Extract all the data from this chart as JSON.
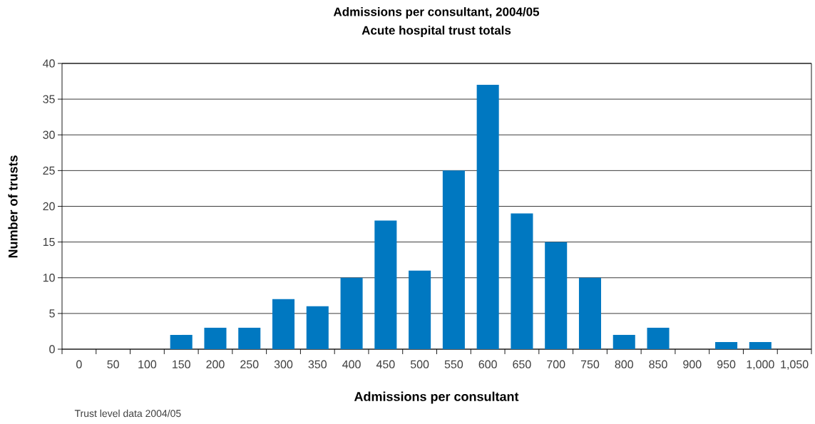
{
  "chart_data": {
    "type": "bar",
    "title": "Admissions per consultant, 2004/05",
    "subtitle": "Acute hospital trust totals",
    "xlabel": "Admissions per consultant",
    "ylabel": "Number of trusts",
    "categories": [
      "0",
      "50",
      "100",
      "150",
      "200",
      "250",
      "300",
      "350",
      "400",
      "450",
      "500",
      "550",
      "600",
      "650",
      "700",
      "750",
      "800",
      "850",
      "900",
      "950",
      "1,000",
      "1,050"
    ],
    "values": [
      0,
      0,
      0,
      2,
      3,
      3,
      7,
      6,
      10,
      18,
      11,
      25,
      37,
      19,
      15,
      10,
      2,
      3,
      0,
      1,
      1,
      0
    ],
    "color": "#0078c1",
    "ylim": [
      0,
      40
    ],
    "yticks": [
      0,
      5,
      10,
      15,
      20,
      25,
      30,
      35,
      40
    ],
    "grid": "y",
    "annotations": [
      "Trust level data 2004/05"
    ]
  }
}
